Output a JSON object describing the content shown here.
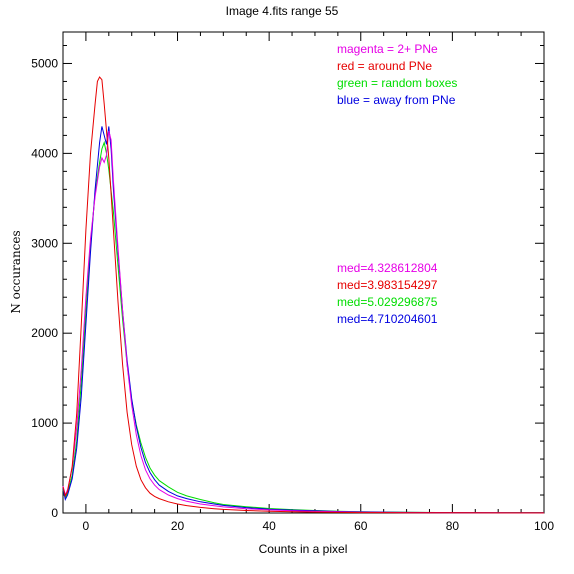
{
  "chart_data": {
    "type": "line",
    "title": "Image 4.fits   range 55",
    "xlabel": "Counts in a pixel",
    "ylabel": "N  occurances",
    "xlim": [
      -5,
      100
    ],
    "ylim": [
      0,
      5350
    ],
    "xticks": [
      0,
      20,
      40,
      60,
      80,
      100
    ],
    "yticks": [
      0,
      1000,
      2000,
      3000,
      4000,
      5000
    ],
    "x_tick_labels": [
      "0",
      "20",
      "40",
      "60",
      "80",
      "100"
    ],
    "y_tick_labels": [
      "0",
      "1000",
      "2000",
      "3000",
      "4000",
      "5000"
    ],
    "legend": [
      {
        "text": "magenta = 2+ PNe",
        "color": "#e600e6"
      },
      {
        "text": "red = around PNe",
        "color": "#e60000"
      },
      {
        "text": "green = random boxes",
        "color": "#00dd00"
      },
      {
        "text": "blue = away from PNe",
        "color": "#0000e0"
      }
    ],
    "medians": [
      {
        "text": "med=4.328612804",
        "color": "#e600e6"
      },
      {
        "text": "med=3.983154297",
        "color": "#e60000"
      },
      {
        "text": "med=5.029296875",
        "color": "#00dd00"
      },
      {
        "text": "med=4.710204601",
        "color": "#0000e0"
      }
    ],
    "series": [
      {
        "color": "#00dd00",
        "points": [
          [
            -5,
            260
          ],
          [
            -4.5,
            170
          ],
          [
            -4,
            220
          ],
          [
            -3,
            420
          ],
          [
            -2,
            800
          ],
          [
            -1,
            1450
          ],
          [
            0,
            2250
          ],
          [
            1,
            3000
          ],
          [
            2,
            3550
          ],
          [
            3,
            3900
          ],
          [
            3.5,
            4050
          ],
          [
            4,
            4120
          ],
          [
            4.5,
            4000
          ],
          [
            5,
            3820
          ],
          [
            6,
            3350
          ],
          [
            7,
            2750
          ],
          [
            8,
            2150
          ],
          [
            9,
            1650
          ],
          [
            10,
            1250
          ],
          [
            11,
            980
          ],
          [
            12,
            780
          ],
          [
            13,
            620
          ],
          [
            14,
            500
          ],
          [
            15,
            420
          ],
          [
            16,
            360
          ],
          [
            18,
            290
          ],
          [
            20,
            230
          ],
          [
            22,
            190
          ],
          [
            25,
            150
          ],
          [
            28,
            115
          ],
          [
            30,
            95
          ],
          [
            35,
            70
          ],
          [
            40,
            50
          ],
          [
            45,
            38
          ],
          [
            50,
            28
          ],
          [
            55,
            20
          ],
          [
            60,
            14
          ],
          [
            70,
            8
          ],
          [
            80,
            5
          ],
          [
            90,
            3
          ],
          [
            100,
            2
          ]
        ]
      },
      {
        "color": "#0000e0",
        "points": [
          [
            -5,
            280
          ],
          [
            -4.5,
            150
          ],
          [
            -4,
            200
          ],
          [
            -3,
            380
          ],
          [
            -2,
            720
          ],
          [
            -1,
            1300
          ],
          [
            0,
            2100
          ],
          [
            1,
            2900
          ],
          [
            2,
            3600
          ],
          [
            3,
            4120
          ],
          [
            3.5,
            4300
          ],
          [
            4,
            4200
          ],
          [
            4.5,
            4100
          ],
          [
            5,
            4300
          ],
          [
            5.5,
            4050
          ],
          [
            6,
            3600
          ],
          [
            7,
            2900
          ],
          [
            8,
            2250
          ],
          [
            9,
            1700
          ],
          [
            10,
            1270
          ],
          [
            11,
            960
          ],
          [
            12,
            730
          ],
          [
            13,
            560
          ],
          [
            14,
            450
          ],
          [
            15,
            370
          ],
          [
            16,
            310
          ],
          [
            18,
            240
          ],
          [
            20,
            190
          ],
          [
            22,
            160
          ],
          [
            25,
            125
          ],
          [
            28,
            100
          ],
          [
            30,
            85
          ],
          [
            35,
            60
          ],
          [
            40,
            42
          ],
          [
            45,
            32
          ],
          [
            50,
            24
          ],
          [
            55,
            17
          ],
          [
            60,
            12
          ],
          [
            70,
            7
          ],
          [
            80,
            4
          ],
          [
            90,
            3
          ],
          [
            100,
            2
          ]
        ]
      },
      {
        "color": "#e600e6",
        "points": [
          [
            -5,
            300
          ],
          [
            -4.5,
            200
          ],
          [
            -4,
            260
          ],
          [
            -3,
            500
          ],
          [
            -2,
            950
          ],
          [
            -1,
            1600
          ],
          [
            0,
            2400
          ],
          [
            1,
            3050
          ],
          [
            2,
            3520
          ],
          [
            3,
            3850
          ],
          [
            3.5,
            3950
          ],
          [
            4,
            3900
          ],
          [
            4.5,
            3980
          ],
          [
            5,
            4250
          ],
          [
            5.5,
            4150
          ],
          [
            6,
            3700
          ],
          [
            7,
            2950
          ],
          [
            8,
            2250
          ],
          [
            9,
            1650
          ],
          [
            10,
            1200
          ],
          [
            11,
            870
          ],
          [
            12,
            640
          ],
          [
            13,
            480
          ],
          [
            14,
            380
          ],
          [
            15,
            310
          ],
          [
            16,
            260
          ],
          [
            18,
            200
          ],
          [
            20,
            160
          ],
          [
            22,
            130
          ],
          [
            25,
            100
          ],
          [
            28,
            80
          ],
          [
            30,
            68
          ],
          [
            35,
            48
          ],
          [
            40,
            34
          ],
          [
            45,
            25
          ],
          [
            50,
            18
          ],
          [
            55,
            13
          ],
          [
            60,
            9
          ],
          [
            70,
            5
          ],
          [
            80,
            3
          ],
          [
            90,
            2
          ],
          [
            100,
            1
          ]
        ]
      },
      {
        "color": "#e60000",
        "points": [
          [
            -5,
            290
          ],
          [
            -4.5,
            190
          ],
          [
            -4,
            240
          ],
          [
            -3,
            520
          ],
          [
            -2,
            1100
          ],
          [
            -1,
            2100
          ],
          [
            0,
            3150
          ],
          [
            1,
            4000
          ],
          [
            2,
            4550
          ],
          [
            2.5,
            4800
          ],
          [
            3,
            4850
          ],
          [
            3.5,
            4820
          ],
          [
            4,
            4550
          ],
          [
            5,
            3950
          ],
          [
            6,
            3150
          ],
          [
            7,
            2350
          ],
          [
            8,
            1650
          ],
          [
            9,
            1120
          ],
          [
            10,
            760
          ],
          [
            11,
            520
          ],
          [
            12,
            370
          ],
          [
            13,
            280
          ],
          [
            14,
            220
          ],
          [
            15,
            185
          ],
          [
            16,
            160
          ],
          [
            18,
            125
          ],
          [
            20,
            100
          ],
          [
            22,
            82
          ],
          [
            25,
            62
          ],
          [
            28,
            48
          ],
          [
            30,
            40
          ],
          [
            35,
            28
          ],
          [
            40,
            20
          ],
          [
            45,
            14
          ],
          [
            50,
            10
          ],
          [
            55,
            7
          ],
          [
            60,
            5
          ],
          [
            70,
            3
          ],
          [
            80,
            2
          ],
          [
            90,
            1
          ],
          [
            100,
            1
          ]
        ]
      }
    ]
  }
}
